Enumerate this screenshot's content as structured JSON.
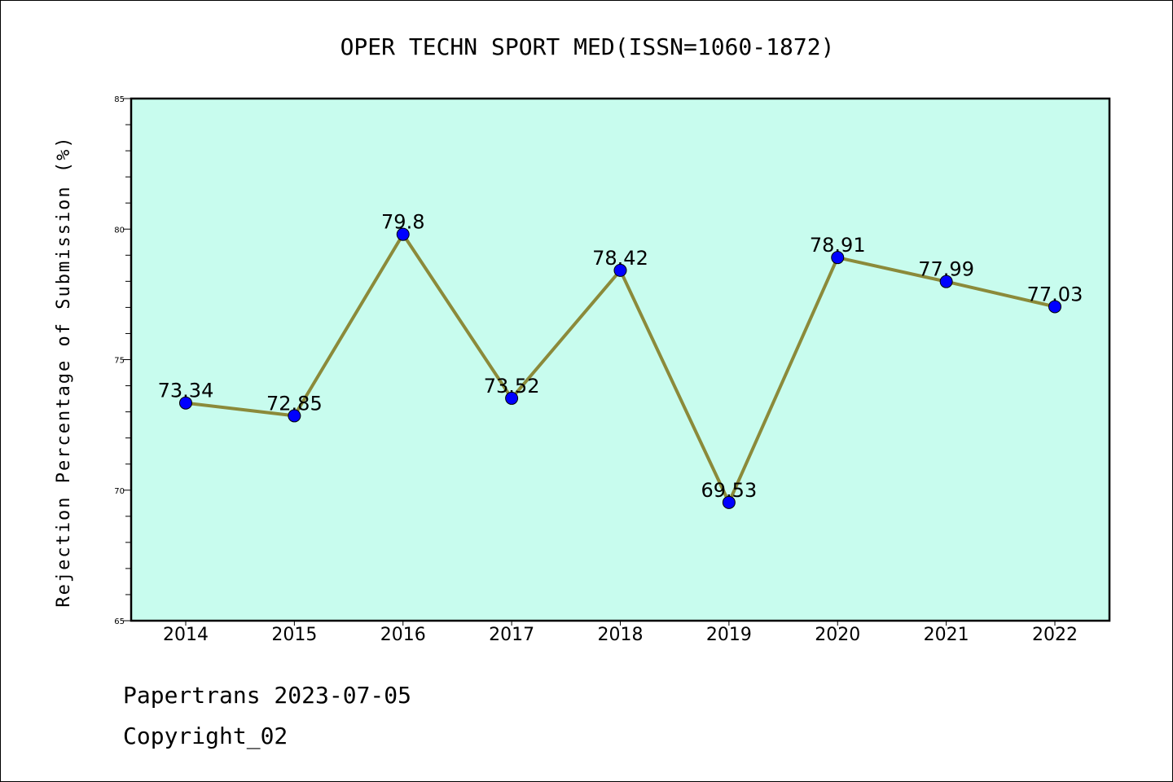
{
  "chart_data": {
    "type": "line",
    "title": "OPER TECHN SPORT MED(ISSN=1060-1872)",
    "xlabel": "",
    "ylabel": "Rejection Percentage of Submission (%)",
    "categories": [
      "2014",
      "2015",
      "2016",
      "2017",
      "2018",
      "2019",
      "2020",
      "2021",
      "2022"
    ],
    "series": [
      {
        "values": [
          73.34,
          72.85,
          79.8,
          73.52,
          78.42,
          69.53,
          78.91,
          77.99,
          77.03
        ],
        "labels": [
          "73.34",
          "72.85",
          "79.8",
          "73.52",
          "78.42",
          "69.53",
          "78.91",
          "77.99",
          "77.03"
        ],
        "line_color": "#8b8a3a",
        "marker_color": "#0000ff"
      }
    ],
    "ylim": [
      65,
      85
    ],
    "yticks": [
      "65",
      "70",
      "75",
      "80",
      "85"
    ],
    "plot_background": "#c8fcee",
    "grid": false,
    "legend": "none"
  },
  "footer": {
    "date_line": "Papertrans 2023-07-05",
    "copyright_line": "Copyright_02"
  }
}
